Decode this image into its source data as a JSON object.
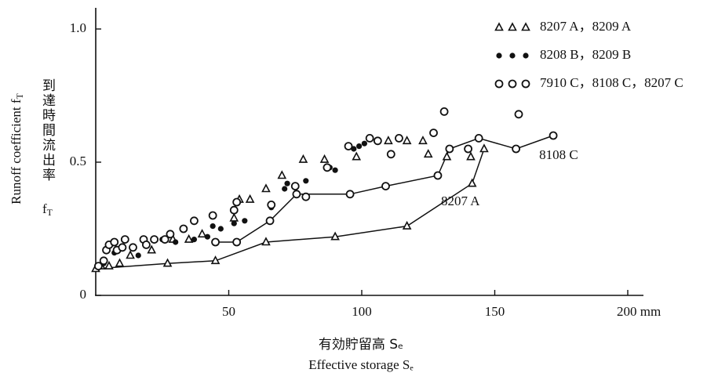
{
  "chart_data": {
    "type": "scatter",
    "y_label": {
      "text": "Runoff coefficient f",
      "sub": "T"
    },
    "y_label_jp": {
      "text": "到達時間流出率",
      "symbol": "f",
      "sub": "T"
    },
    "x_label_jp": "有効貯留高 Sₑ",
    "x_label": "Effective storage Sₑ",
    "xlim": [
      0,
      200
    ],
    "ylim": [
      0,
      1.0
    ],
    "xticks": [
      50,
      100,
      150,
      {
        "value": 200,
        "label": "200 mm"
      }
    ],
    "yticks": [
      0,
      0.5,
      {
        "value": 1.0,
        "label": "1.0"
      }
    ],
    "series": [
      {
        "name": "8207 A，8209 A",
        "marker": "triangle",
        "color": "#111111",
        "x": [
          2,
          5,
          9,
          13,
          21,
          29,
          35,
          40,
          52,
          54,
          58,
          64,
          70,
          78,
          86,
          98,
          110,
          117,
          123,
          125,
          132,
          141
        ],
        "values": [
          0.11,
          0.11,
          0.12,
          0.15,
          0.17,
          0.21,
          0.21,
          0.23,
          0.29,
          0.36,
          0.36,
          0.4,
          0.45,
          0.51,
          0.51,
          0.52,
          0.58,
          0.58,
          0.58,
          0.53,
          0.52,
          0.52
        ]
      },
      {
        "name": "8208 B，8209 B",
        "marker": "dot",
        "color": "#111111",
        "x": [
          3,
          7,
          10,
          16,
          25,
          30,
          37,
          42,
          44,
          47,
          52,
          56,
          66,
          71,
          72,
          79,
          88,
          90,
          97,
          99,
          101
        ],
        "values": [
          0.12,
          0.16,
          0.18,
          0.15,
          0.21,
          0.2,
          0.21,
          0.22,
          0.26,
          0.25,
          0.27,
          0.28,
          0.33,
          0.4,
          0.42,
          0.43,
          0.48,
          0.47,
          0.55,
          0.56,
          0.57
        ]
      },
      {
        "name": "7910 C，8108 C，8207 C",
        "marker": "circle",
        "color": "#111111",
        "x": [
          1,
          3,
          4,
          5,
          7,
          8,
          10,
          11,
          14,
          18,
          19,
          22,
          26,
          28,
          33,
          37,
          44,
          52,
          53,
          66,
          75,
          79,
          87,
          95,
          103,
          106,
          111,
          114,
          127,
          131,
          140,
          159
        ],
        "values": [
          0.11,
          0.13,
          0.17,
          0.19,
          0.2,
          0.17,
          0.18,
          0.21,
          0.18,
          0.21,
          0.19,
          0.21,
          0.21,
          0.23,
          0.25,
          0.28,
          0.3,
          0.32,
          0.35,
          0.34,
          0.41,
          0.37,
          0.48,
          0.56,
          0.59,
          0.58,
          0.53,
          0.59,
          0.61,
          0.69,
          0.55,
          0.68
        ]
      }
    ],
    "lines": [
      {
        "name": "8108 C",
        "marker": "circle",
        "color": "#111111",
        "x": [
          45,
          53,
          65.5,
          75.5,
          95.6,
          109,
          128.6,
          133,
          144,
          158,
          172
        ],
        "values": [
          0.2,
          0.2,
          0.28,
          0.38,
          0.38,
          0.41,
          0.45,
          0.55,
          0.59,
          0.55,
          0.6
        ]
      },
      {
        "name": "8207 A",
        "marker": "triangle",
        "color": "#111111",
        "x": [
          0,
          27,
          45,
          64,
          90,
          117,
          141.5,
          146
        ],
        "values": [
          0.1,
          0.12,
          0.13,
          0.2,
          0.22,
          0.26,
          0.42,
          0.55
        ]
      }
    ]
  }
}
